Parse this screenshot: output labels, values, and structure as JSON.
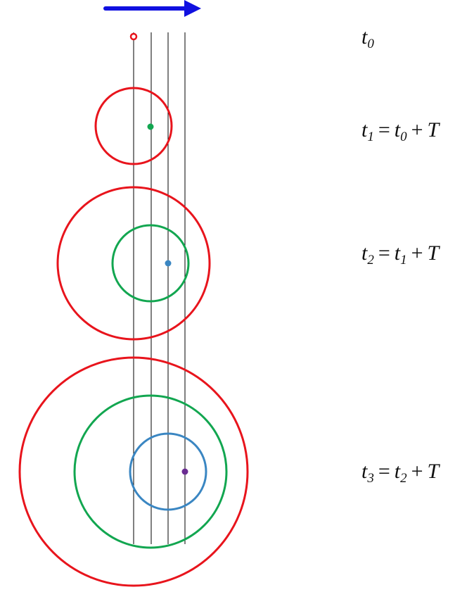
{
  "colors": {
    "arrow": "#1010e0",
    "guide_line": "#000000",
    "source_t0": "#e8141c",
    "source_t1": "#12a650",
    "source_t2": "#3a86c2",
    "source_t3": "#6a2c91"
  },
  "labels": {
    "t0": {
      "base": "t",
      "sub": "0"
    },
    "t1": {
      "lhs": "t",
      "lhs_sub": "1",
      "eq": "=",
      "rhs": "t",
      "rhs_sub": "0",
      "plus": "+",
      "period": "T"
    },
    "t2": {
      "lhs": "t",
      "lhs_sub": "2",
      "eq": "=",
      "rhs": "t",
      "rhs_sub": "1",
      "plus": "+",
      "period": "T"
    },
    "t3": {
      "lhs": "t",
      "lhs_sub": "3",
      "eq": "=",
      "rhs": "t",
      "rhs_sub": "2",
      "plus": "+",
      "period": "T"
    }
  }
}
